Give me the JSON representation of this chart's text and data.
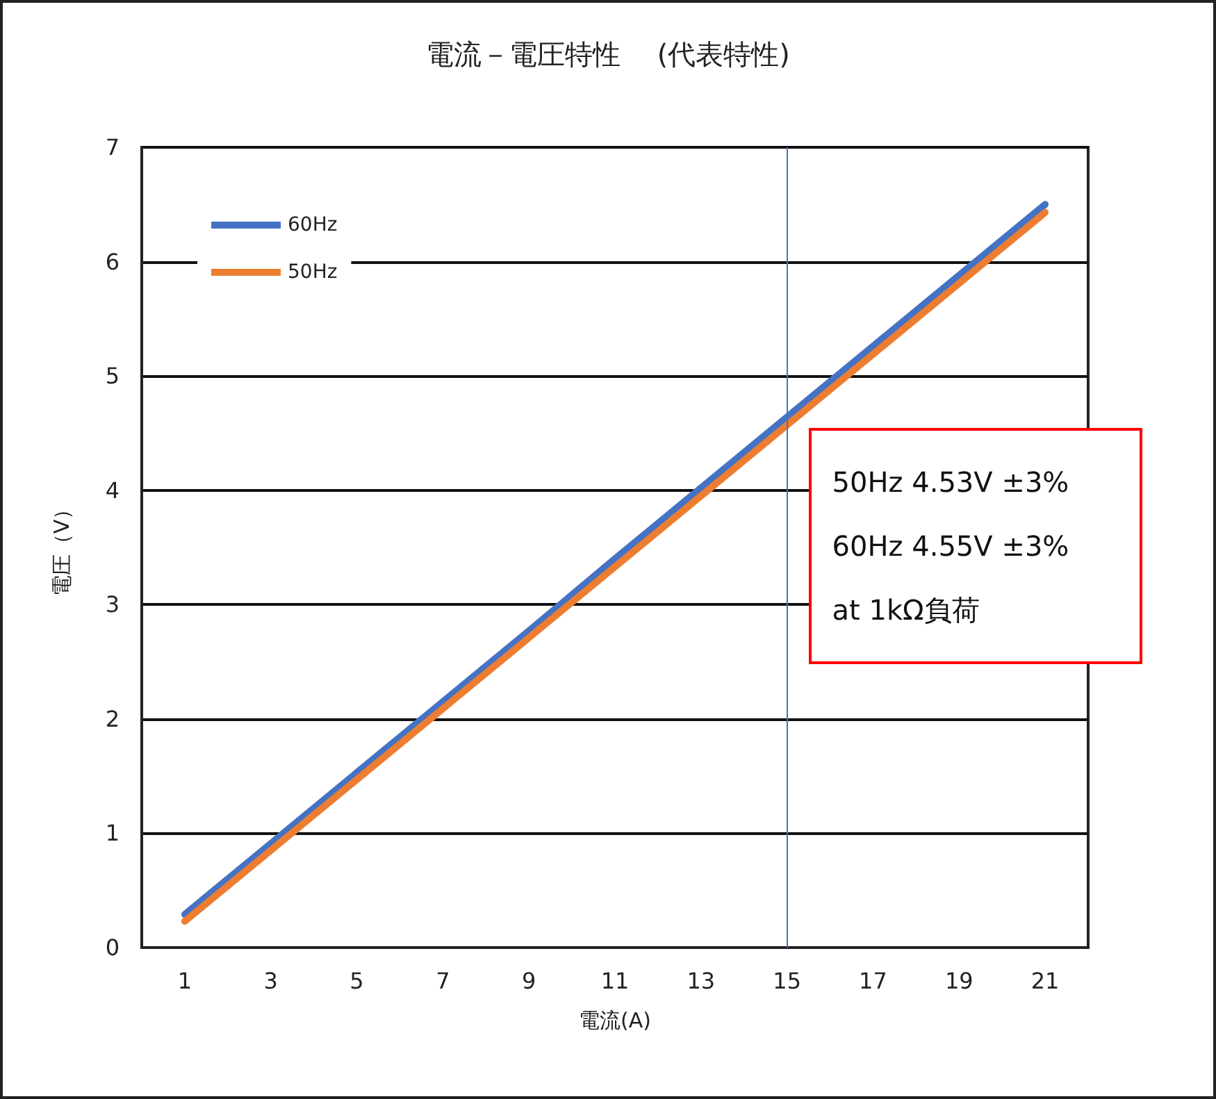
{
  "chart_data": {
    "type": "line",
    "title": "電流－電圧特性　 (代表特性)",
    "xlabel": "電流(A)",
    "ylabel": "電圧（V）",
    "x": [
      1,
      3,
      5,
      7,
      9,
      11,
      13,
      15,
      17,
      19,
      21
    ],
    "series": [
      {
        "name": "60Hz",
        "color": "#4472c4",
        "values": [
          0.29,
          0.91,
          1.53,
          2.15,
          2.77,
          3.4,
          4.02,
          4.64,
          5.26,
          5.88,
          6.5
        ]
      },
      {
        "name": "50Hz",
        "color": "#ed7d31",
        "values": [
          0.23,
          0.85,
          1.47,
          2.09,
          2.71,
          3.33,
          3.95,
          4.57,
          5.19,
          5.81,
          6.43
        ]
      }
    ],
    "xlim": [
      0,
      22
    ],
    "xticks": [
      1,
      3,
      5,
      7,
      9,
      11,
      13,
      15,
      17,
      19,
      21
    ],
    "ylim": [
      0,
      7
    ],
    "yticks": [
      0,
      1,
      2,
      3,
      4,
      5,
      6,
      7
    ],
    "grid": "y",
    "legend": "top left",
    "marker": "none",
    "line_style": "solid",
    "ref_lines": [
      {
        "axis": "x",
        "value": 15,
        "color": "#4472c4"
      }
    ],
    "annotations": [
      "50Hz 4.53V ±3%",
      "60Hz 4.55V ±3%",
      "at 1kΩ負荷"
    ]
  }
}
